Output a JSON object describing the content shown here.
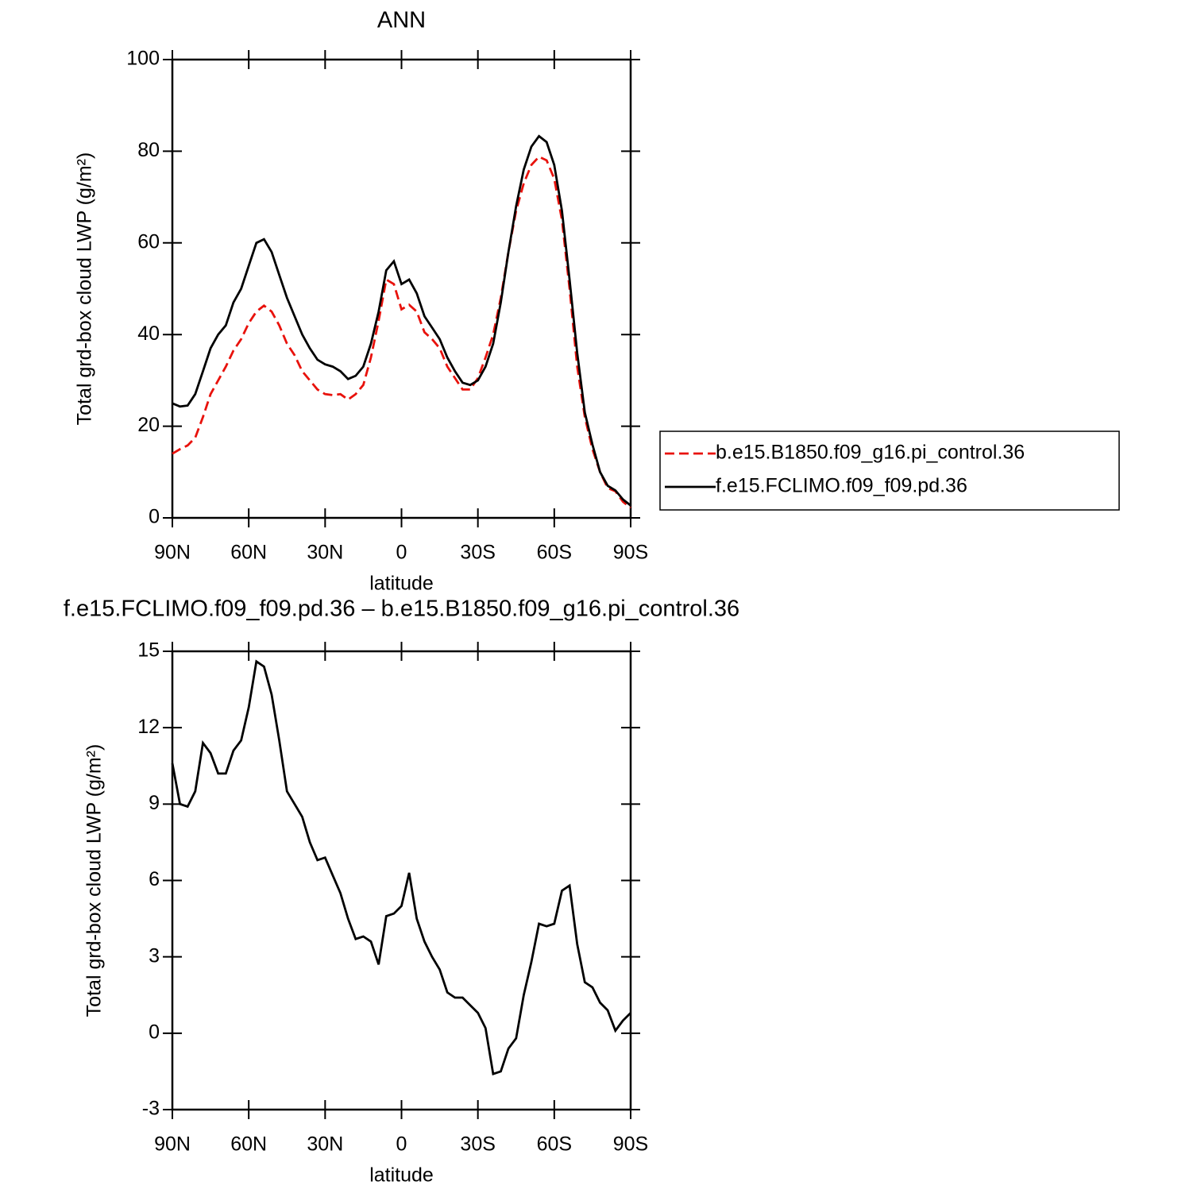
{
  "chart_data": [
    {
      "type": "line",
      "title": "ANN",
      "xlabel": "latitude",
      "ylabel": "Total grd-box cloud LWP (g/m²)",
      "x": [
        90,
        87,
        84,
        81,
        78,
        75,
        72,
        69,
        66,
        63,
        60,
        57,
        54,
        51,
        48,
        45,
        42,
        39,
        36,
        33,
        30,
        27,
        24,
        21,
        18,
        15,
        12,
        9,
        6,
        3,
        0,
        -3,
        -6,
        -9,
        -12,
        -15,
        -18,
        -21,
        -24,
        -27,
        -30,
        -33,
        -36,
        -39,
        -42,
        -45,
        -48,
        -51,
        -54,
        -57,
        -60,
        -63,
        -66,
        -69,
        -72,
        -75,
        -78,
        -81,
        -84,
        -87,
        -90
      ],
      "xlim": [
        90,
        -90
      ],
      "xticks": [
        {
          "value": 90,
          "label": "90N"
        },
        {
          "value": 60,
          "label": "60N"
        },
        {
          "value": 30,
          "label": "30N"
        },
        0,
        {
          "value": -30,
          "label": "30S"
        },
        {
          "value": -60,
          "label": "60S"
        },
        {
          "value": -90,
          "label": "90S"
        }
      ],
      "ylim": [
        0,
        100
      ],
      "yticks": [
        0,
        20,
        40,
        60,
        80,
        100
      ],
      "legend": "right",
      "series": [
        {
          "name": "b.e15.B1850.f09_g16.pi_control.36",
          "color": "#e8120c",
          "dashed": true,
          "values": [
            14,
            15,
            15.8,
            17.5,
            22,
            27,
            30,
            33,
            36.5,
            39,
            42.5,
            45,
            46.3,
            45,
            42,
            38,
            35.5,
            32,
            30,
            28,
            27,
            26.8,
            27,
            25.8,
            27,
            29,
            35,
            43,
            52,
            51,
            45.5,
            46.5,
            45,
            40.5,
            39,
            37,
            33,
            30.5,
            28,
            28,
            30.5,
            35,
            40,
            48,
            58,
            67,
            73,
            77,
            78.8,
            78,
            74,
            65,
            50,
            33,
            22,
            15,
            10,
            6.5,
            5.8,
            3.5,
            2.2
          ]
        },
        {
          "name": "f.e15.FCLIMO.f09_f09.pd.36",
          "color": "#000000",
          "dashed": false,
          "values": [
            25,
            24.3,
            24.5,
            27,
            32,
            37,
            40,
            42,
            47,
            50,
            55,
            60,
            60.8,
            58,
            53,
            48,
            44,
            40,
            37,
            34.5,
            33.5,
            33,
            32,
            30.3,
            31,
            33,
            38,
            45,
            54,
            56,
            51,
            52,
            49,
            44,
            41.5,
            39,
            35,
            32,
            29.5,
            29,
            30,
            33,
            38,
            47,
            58,
            68,
            76,
            81,
            83.3,
            82,
            77,
            67,
            52,
            36,
            23,
            16,
            10,
            7,
            6,
            4,
            2.7
          ]
        }
      ]
    },
    {
      "type": "line",
      "title": "f.e15.FCLIMO.f09_f09.pd.36 – b.e15.B1850.f09_g16.pi_control.36",
      "xlabel": "latitude",
      "ylabel": "Total grd-box cloud LWP (g/m²)",
      "x": [
        90,
        87,
        84,
        81,
        78,
        75,
        72,
        69,
        66,
        63,
        60,
        57,
        54,
        51,
        48,
        45,
        42,
        39,
        36,
        33,
        30,
        27,
        24,
        21,
        18,
        15,
        12,
        9,
        6,
        3,
        0,
        -3,
        -6,
        -9,
        -12,
        -15,
        -18,
        -21,
        -24,
        -27,
        -30,
        -33,
        -36,
        -39,
        -42,
        -45,
        -48,
        -51,
        -54,
        -57,
        -60,
        -63,
        -66,
        -69,
        -72,
        -75,
        -78,
        -81,
        -84,
        -87,
        -90
      ],
      "xlim": [
        90,
        -90
      ],
      "xticks": [
        {
          "value": 90,
          "label": "90N"
        },
        {
          "value": 60,
          "label": "60N"
        },
        {
          "value": 30,
          "label": "30N"
        },
        0,
        {
          "value": -30,
          "label": "30S"
        },
        {
          "value": -60,
          "label": "60S"
        },
        {
          "value": -90,
          "label": "90S"
        }
      ],
      "ylim": [
        -3,
        15
      ],
      "yticks": [
        -3,
        0,
        3,
        6,
        9,
        12,
        15
      ],
      "color": "#000000",
      "values": [
        10.6,
        9,
        8.9,
        9.5,
        11.4,
        11,
        10.2,
        10.2,
        11.1,
        11.5,
        12.8,
        14.6,
        14.4,
        13.3,
        11.5,
        9.5,
        9.0,
        8.5,
        7.5,
        6.8,
        6.9,
        6.2,
        5.5,
        4.5,
        3.7,
        3.8,
        3.6,
        2.7,
        4.6,
        4.7,
        5,
        6.3,
        4.5,
        3.6,
        3.0,
        2.5,
        1.6,
        1.4,
        1.4,
        1.1,
        0.8,
        0.2,
        -1.6,
        -1.5,
        -0.6,
        -0.2,
        1.5,
        2.8,
        4.3,
        4.2,
        4.3,
        5.6,
        5.8,
        3.5,
        2.0,
        1.8,
        1.2,
        0.9,
        0.1,
        0.5,
        0.8
      ]
    }
  ]
}
